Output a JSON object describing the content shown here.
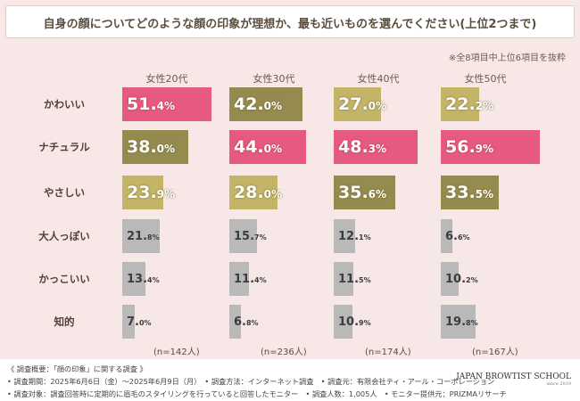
{
  "title": "自身の顔についてどのような顔の印象が理想か、最も近いものを選んでください(上位2つまで)",
  "note": "※全8項目中上位6項目を抜粋",
  "colors": {
    "pink": "#e55a7e",
    "olive_dark": "#958b4e",
    "olive_light": "#c3b468",
    "gray": "#b9b9b9"
  },
  "chart_data": {
    "type": "bar",
    "groups": [
      "女性20代",
      "女性30代",
      "女性40代",
      "女性50代"
    ],
    "categories": [
      "かわいい",
      "ナチュラル",
      "やさしい",
      "大人っぽい",
      "かっこいい",
      "知的"
    ],
    "series": [
      {
        "name": "女性20代",
        "values": [
          51.4,
          38.0,
          23.9,
          21.8,
          13.4,
          7.0
        ],
        "rank": [
          1,
          2,
          3,
          0,
          0,
          0
        ]
      },
      {
        "name": "女性30代",
        "values": [
          42.0,
          44.0,
          28.0,
          15.7,
          11.4,
          6.8
        ],
        "rank": [
          2,
          1,
          3,
          0,
          0,
          0
        ]
      },
      {
        "name": "女性40代",
        "values": [
          27.0,
          48.3,
          35.6,
          12.1,
          11.5,
          10.9
        ],
        "rank": [
          3,
          1,
          2,
          0,
          0,
          0
        ]
      },
      {
        "name": "女性50代",
        "values": [
          22.2,
          56.9,
          33.5,
          6.6,
          10.2,
          19.8
        ],
        "rank": [
          3,
          1,
          2,
          0,
          0,
          0
        ]
      }
    ],
    "n_labels": [
      "(n=142人)",
      "(n=236人)",
      "(n=174人)",
      "(n=167人)"
    ],
    "value_suffix": "%"
  },
  "footer": {
    "line1": "《 調査概要：「顔の印象」に関する調査 》",
    "line2": "• 調査期間：2025年6月6日（金）〜2025年6月9日（月）　• 調査方法：インターネット調査　• 調査元：有限会社ティ・アール・コーポレーション",
    "line3": "• 調査対象：調査回答時に定期的に眉毛のスタイリングを行っていると回答したモニター　• 調査人数：1,005人　• モニター提供元：PRIZMAリサーチ",
    "logo": "JAPAN BROWTIST SCHOOL",
    "logo_sub": "since 2019"
  }
}
